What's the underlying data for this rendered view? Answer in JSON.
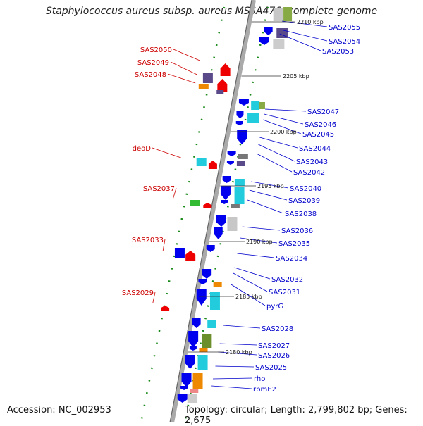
{
  "title": "Staphylococcus aureus subsp. aureus MSSA476, complete genome",
  "accession_label": "Accession: NC_002953",
  "topology_label": "Topology: circular; Length: 2,799,802 bp; Genes: 2,675",
  "colors": {
    "backbone": "#9a9a9a",
    "forward_gene": "#0000ee",
    "reverse_gene": "#ee0000",
    "cyan_feature": "#22ccdd",
    "dotted_ring": "#1a8a1a",
    "label_right": "#0000cc",
    "label_left": "#cc0000"
  },
  "scale_ticks": [
    {
      "label": "2210 kbp"
    },
    {
      "label": "2205 kbp"
    },
    {
      "label": "2200 kbp"
    },
    {
      "label": "2195 kbp"
    },
    {
      "label": "2190 kbp"
    },
    {
      "label": "2185 kbp"
    },
    {
      "label": "2180 kbp"
    }
  ],
  "right_labels": [
    "SAS2055",
    "SAS2054",
    "SAS2053",
    "SAS2047",
    "SAS2046",
    "SAS2045",
    "SAS2044",
    "SAS2043",
    "SAS2042",
    "SAS2040",
    "SAS2039",
    "SAS2038",
    "SAS2036",
    "SAS2035",
    "SAS2034",
    "SAS2032",
    "SAS2031",
    "pyrG",
    "SAS2028",
    "SAS2027",
    "SAS2026",
    "SAS2025",
    "rho",
    "rpmE2"
  ],
  "left_labels": [
    "SAS2050",
    "SAS2049",
    "SAS2048",
    "deoD",
    "SAS2037",
    "SAS2033",
    "SAS2029"
  ]
}
